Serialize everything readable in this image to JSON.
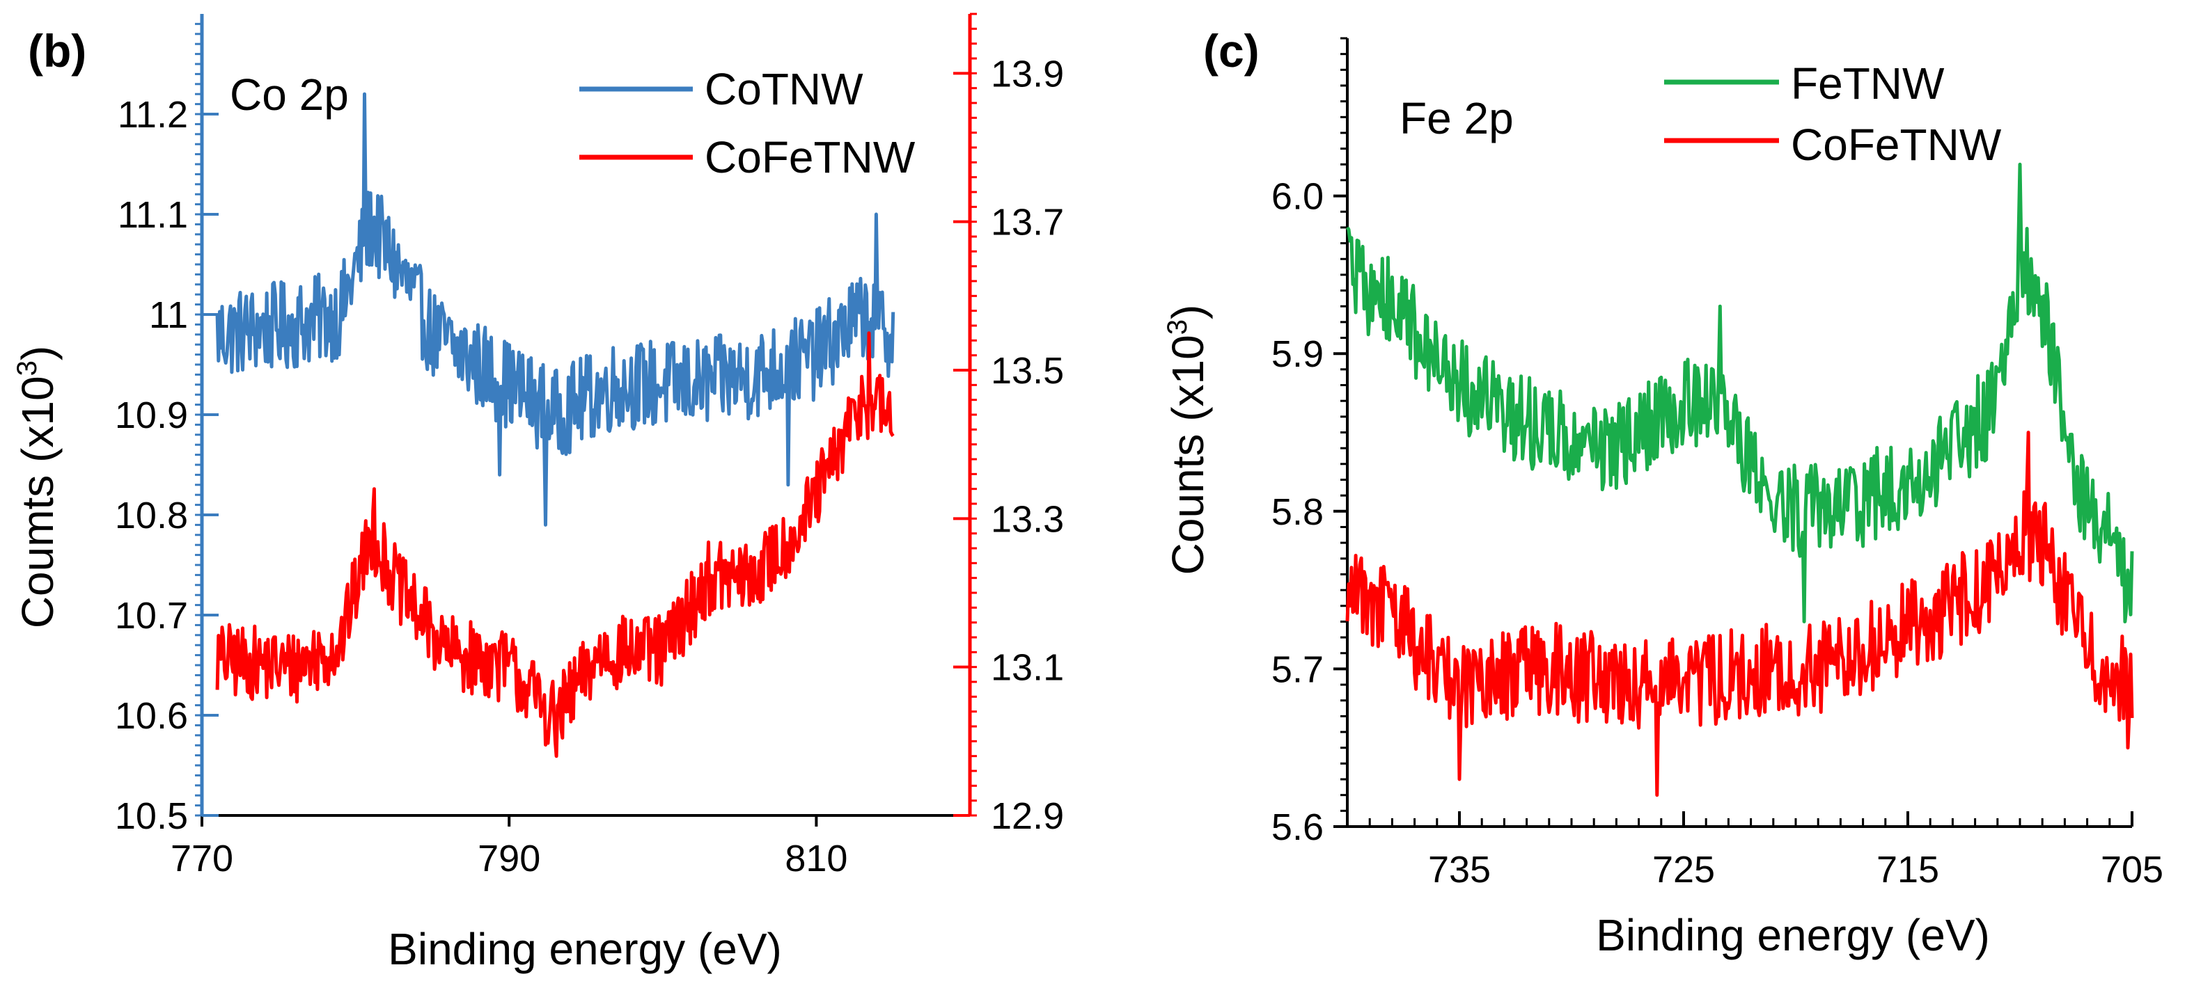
{
  "chart_data": [
    {
      "type": "line",
      "panel_label": "(b)",
      "annotation": "Co 2p",
      "xlabel": "Binding energy (eV)",
      "ylabel_main": "Coumts (x10",
      "ylabel_sup": "3",
      "ylabel_close": ")",
      "xlim": [
        770,
        820
      ],
      "x_ticks": [
        770,
        790,
        810
      ],
      "ylim": [
        10.5,
        11.3
      ],
      "y_ticks": [
        "10.5",
        "10.6",
        "10.7",
        "10.8",
        "10.9",
        "11",
        "11.1",
        "11.2"
      ],
      "y2lim": [
        12.9,
        13.98
      ],
      "y2_ticks": [
        "12.9",
        "13.1",
        "13.3",
        "13.5",
        "13.7",
        "13.9"
      ],
      "left_axis_color": "#3b7dbf",
      "right_axis_color": "#ff0000",
      "legend_position": "top-right",
      "series": [
        {
          "name": "CoTNW",
          "color": "#3b7dbf",
          "axis": "left",
          "x_range": [
            771,
            815
          ],
          "noise": 0.045,
          "baseline": [
            [
              771,
              10.98
            ],
            [
              776,
              10.99
            ],
            [
              779,
              11.0
            ],
            [
              781,
              11.09
            ],
            [
              783,
              11.04
            ],
            [
              785,
              10.98
            ],
            [
              790,
              10.93
            ],
            [
              793,
              10.9
            ],
            [
              797,
              10.93
            ],
            [
              802,
              10.93
            ],
            [
              806,
              10.94
            ],
            [
              810,
              10.96
            ],
            [
              813,
              11.0
            ],
            [
              815,
              10.98
            ]
          ],
          "peaks": [
            [
              780.6,
              11.22
            ],
            [
              808.2,
              10.83
            ],
            [
              813.9,
              11.1
            ],
            [
              792.4,
              10.79
            ],
            [
              789.4,
              10.84
            ]
          ]
        },
        {
          "name": "CoFeTNW",
          "color": "#ff0000",
          "axis": "right",
          "x_range": [
            771,
            815
          ],
          "noise": 0.05,
          "baseline": [
            [
              771,
              13.11
            ],
            [
              776,
              13.1
            ],
            [
              779,
              13.13
            ],
            [
              781,
              13.28
            ],
            [
              783,
              13.2
            ],
            [
              786,
              13.12
            ],
            [
              790,
              13.1
            ],
            [
              793,
              13.03
            ],
            [
              796,
              13.12
            ],
            [
              800,
              13.12
            ],
            [
              803,
              13.22
            ],
            [
              806,
              13.22
            ],
            [
              809,
              13.29
            ],
            [
              811,
              13.37
            ],
            [
              813,
              13.46
            ],
            [
              815,
              13.44
            ]
          ],
          "peaks": [
            [
              781.2,
              13.34
            ],
            [
              793.1,
              12.98
            ],
            [
              813.4,
              13.55
            ]
          ]
        }
      ]
    },
    {
      "type": "line",
      "panel_label": "(c)",
      "annotation": "Fe 2p",
      "xlabel": "Binding energy (eV)",
      "ylabel_main": "Counts (x10",
      "ylabel_sup": "3",
      "ylabel_close": ")",
      "xlim": [
        740,
        705
      ],
      "x_ticks": [
        735,
        725,
        715,
        705
      ],
      "ylim": [
        5.6,
        6.1
      ],
      "y_ticks": [
        "5.6",
        "5.7",
        "5.8",
        "5.9",
        "6.0"
      ],
      "legend_position": "top-center",
      "series": [
        {
          "name": "FeTNW",
          "color": "#1aad4b",
          "axis": "left",
          "x_range": [
            740,
            705
          ],
          "noise": 0.03,
          "baseline": [
            [
              740,
              5.95
            ],
            [
              738,
              5.93
            ],
            [
              735,
              5.88
            ],
            [
              731,
              5.85
            ],
            [
              728,
              5.84
            ],
            [
              725,
              5.87
            ],
            [
              723,
              5.86
            ],
            [
              721,
              5.8
            ],
            [
              718,
              5.8
            ],
            [
              715,
              5.82
            ],
            [
              713,
              5.84
            ],
            [
              711,
              5.87
            ],
            [
              710,
              5.96
            ],
            [
              709,
              5.93
            ],
            [
              707.5,
              5.82
            ],
            [
              706,
              5.78
            ],
            [
              705,
              5.75
            ]
          ],
          "peaks": [
            [
              710,
              6.02
            ],
            [
              723.4,
              5.93
            ],
            [
              740,
              5.98
            ],
            [
              719.6,
              5.73
            ],
            [
              705.3,
              5.73
            ]
          ]
        },
        {
          "name": "CoFeTNW",
          "color": "#ff0000",
          "axis": "left",
          "x_range": [
            740,
            705
          ],
          "noise": 0.03,
          "baseline": [
            [
              740,
              5.76
            ],
            [
              738,
              5.73
            ],
            [
              735,
              5.69
            ],
            [
              731,
              5.7
            ],
            [
              728,
              5.69
            ],
            [
              725,
              5.69
            ],
            [
              722,
              5.7
            ],
            [
              719,
              5.7
            ],
            [
              716,
              5.72
            ],
            [
              713,
              5.74
            ],
            [
              711,
              5.76
            ],
            [
              710,
              5.79
            ],
            [
              709,
              5.78
            ],
            [
              707,
              5.71
            ],
            [
              705,
              5.69
            ]
          ],
          "peaks": [
            [
              709.6,
              5.85
            ],
            [
              726.2,
              5.62
            ],
            [
              705.2,
              5.65
            ],
            [
              735,
              5.63
            ]
          ]
        }
      ]
    }
  ]
}
